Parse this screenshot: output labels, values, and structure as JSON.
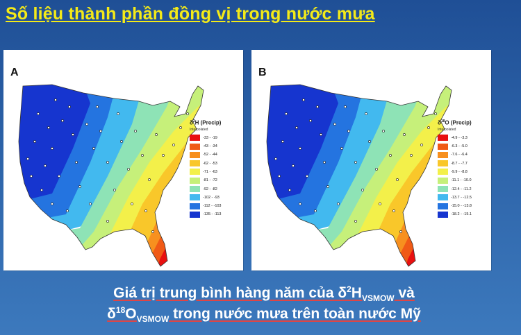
{
  "title": "Số liệu thành phần đồng vị trong nước mưa",
  "colors": {
    "title": "#f4ea18",
    "background": "#2d63a8",
    "palette": [
      "#e81010",
      "#f05a16",
      "#f7901f",
      "#f9c72a",
      "#f3f04a",
      "#c6f07a",
      "#8ee3b6",
      "#42b9ef",
      "#2474e0",
      "#1635cf"
    ]
  },
  "panels": [
    {
      "letter": "A",
      "legend_title_prefix": "δ",
      "legend_title_sup": "2",
      "legend_title_suffix": "H (Precip)",
      "legend_subtitle": "Interpolated",
      "legend_items": [
        "-33 - -19",
        "-43 - -34",
        "-52 - -44",
        "-62 - -53",
        "-71 - -63",
        "-81 - -72",
        "-92 - -82",
        "-102 - -93",
        "-112 - -103",
        "-135 - -113"
      ]
    },
    {
      "letter": "B",
      "legend_title_prefix": "δ",
      "legend_title_sup": "18",
      "legend_title_suffix": "O (Precip)",
      "legend_subtitle": "Interpolated",
      "legend_items": [
        "-4.9 - -3.3",
        "-6.3 - -5.0",
        "-7.6 - -6.4",
        "-8.7 - -7.7",
        "-9.9 - -8.8",
        "-11.1 - -10.0",
        "-12.4 - -11.2",
        "-13.7 - -12.5",
        "-15.0 - -13.8",
        "-18.2 - -15.1"
      ]
    }
  ],
  "caption": {
    "line1_a": "Giá trị trung bình hàng năm của δ",
    "line1_sup": "2",
    "line1_b": "H",
    "line1_sub": "VSMOW",
    "line1_c": " và",
    "line2_a": "δ",
    "line2_sup": "18",
    "line2_b": "O",
    "line2_sub": "VSMOW",
    "line2_c": " trong nước mưa trên toàn nước Mỹ"
  }
}
